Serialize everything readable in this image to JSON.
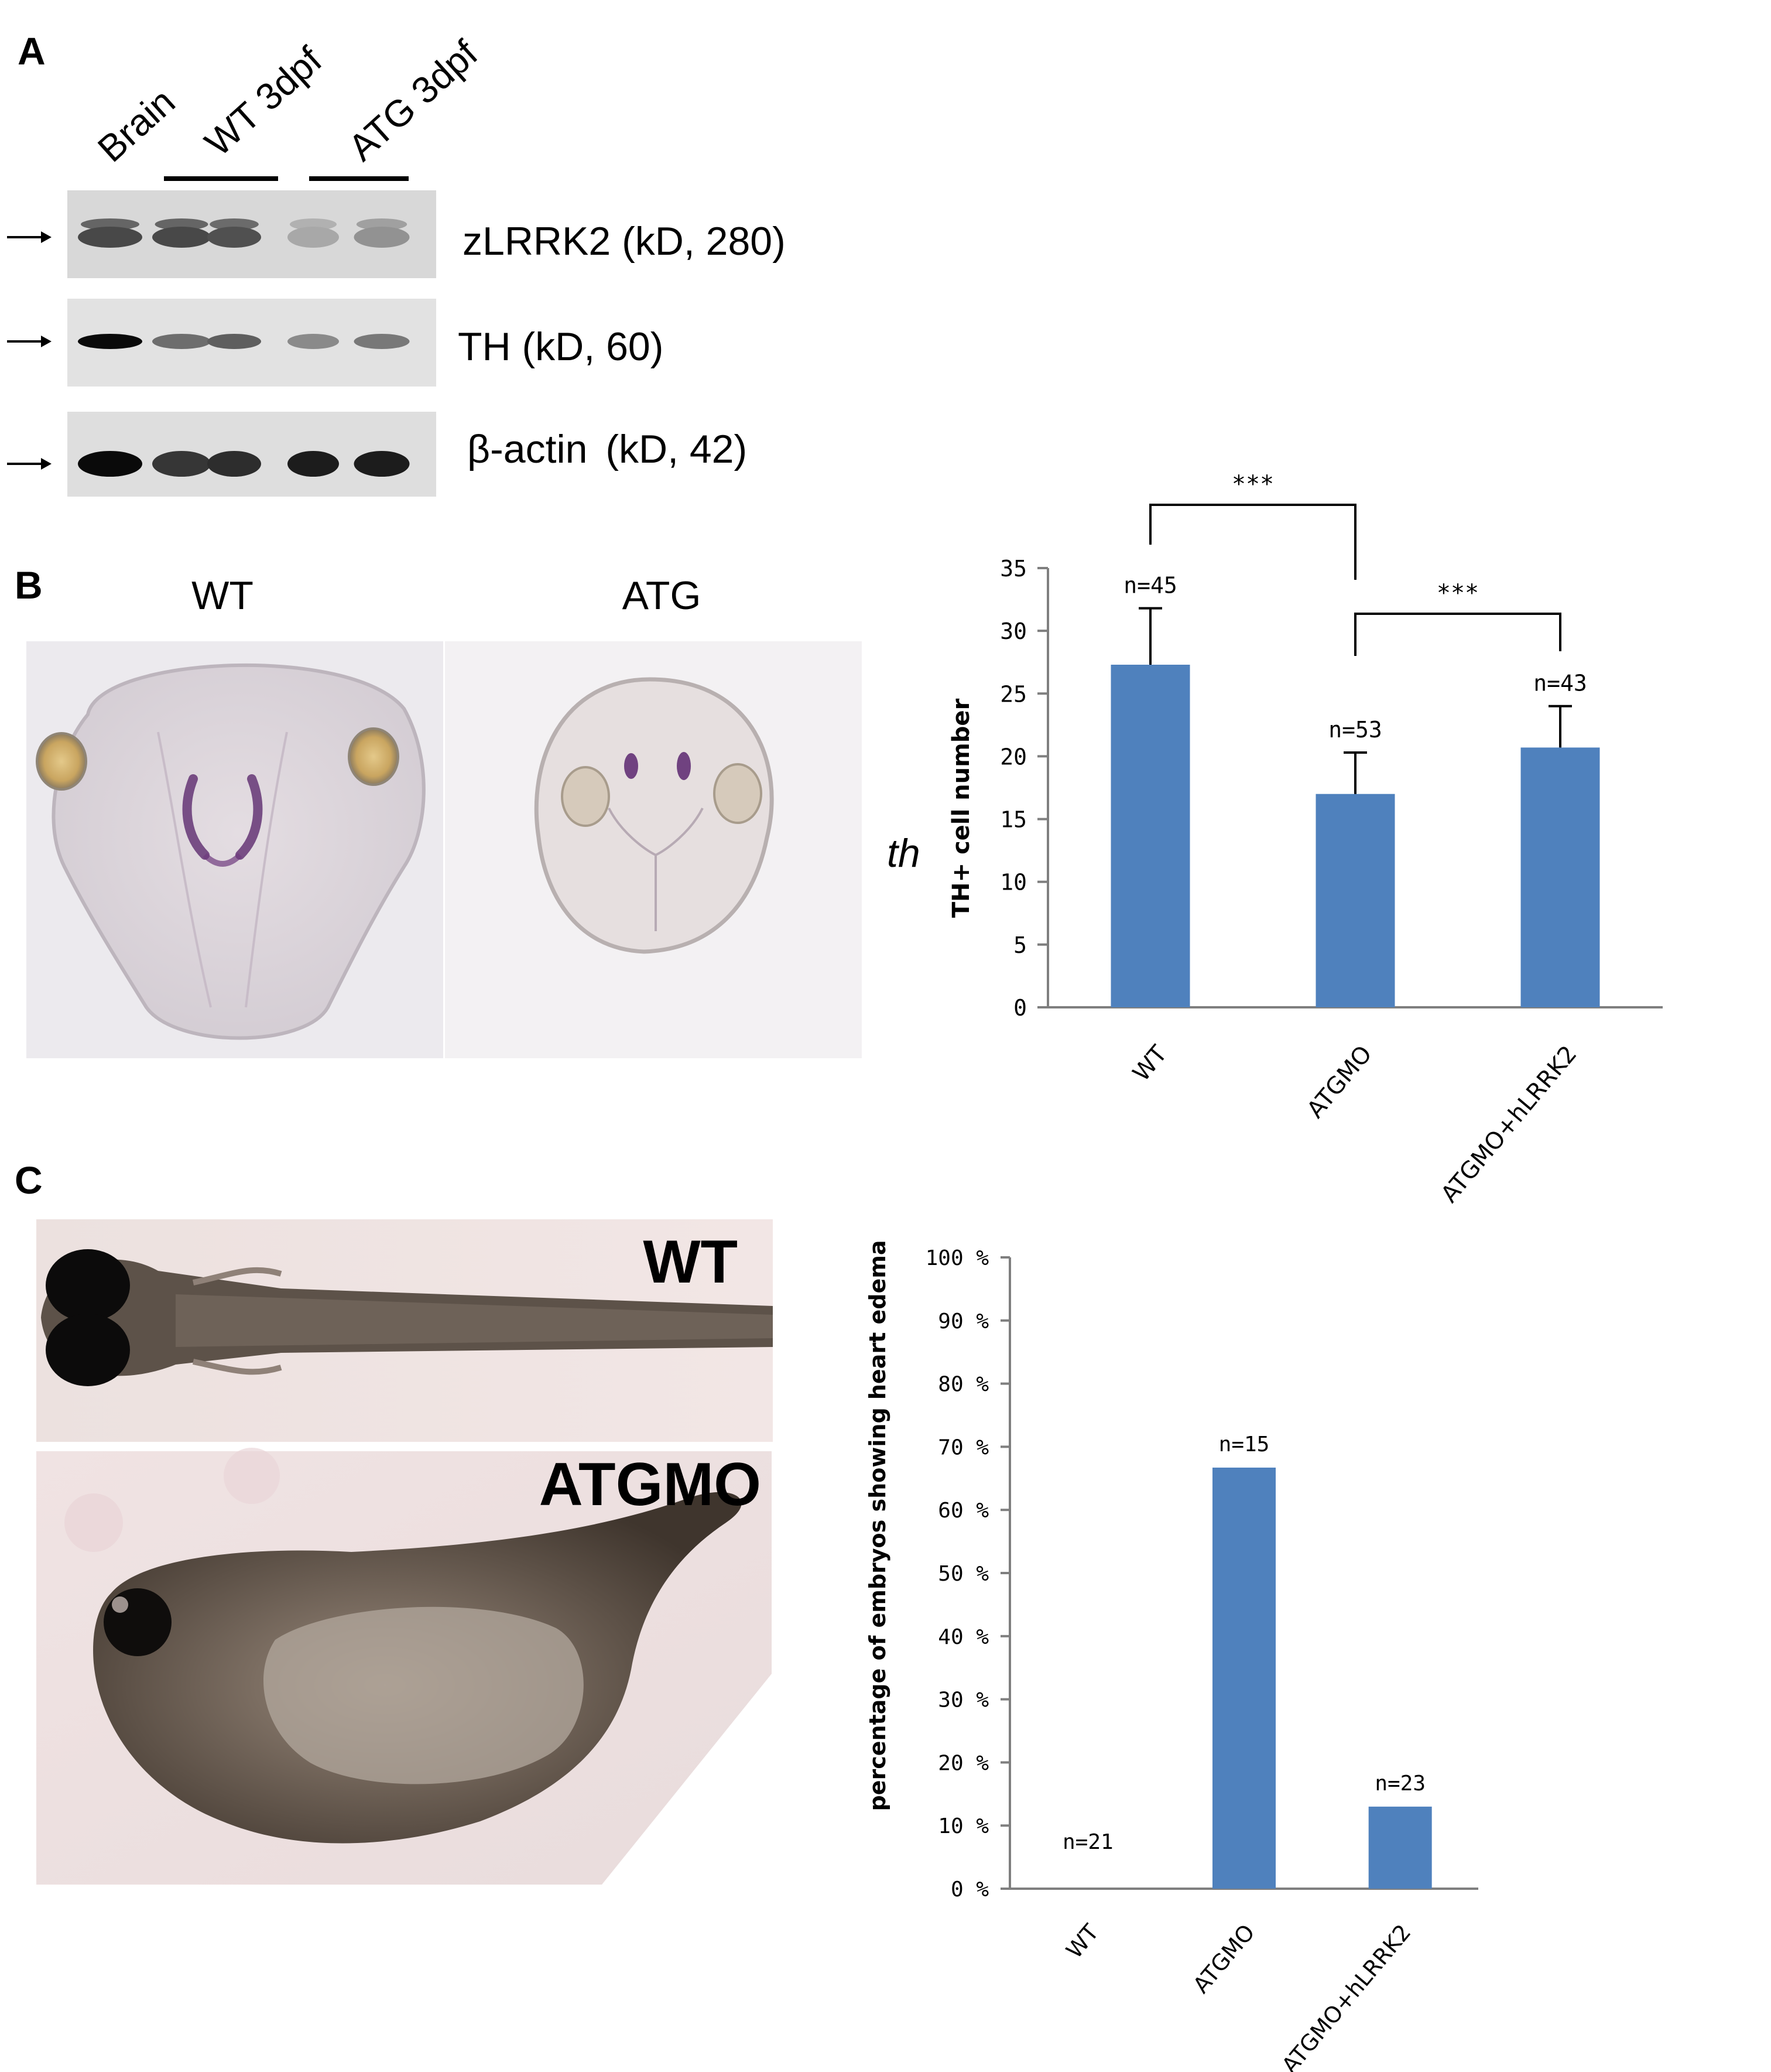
{
  "panelA": {
    "label": "A",
    "lane_headers": [
      "Brain",
      "WT 3dpf",
      "ATG 3dpf"
    ],
    "blots": [
      {
        "name": "zLRRK2",
        "label": "zLRRK2 (kD, 280)"
      },
      {
        "name": "TH",
        "label": "TH (kD, 60)"
      },
      {
        "name": "actin",
        "label_prefix": "β-actin",
        "label_suffix": "(kD, 42)"
      }
    ],
    "band_intensity": {
      "zLRRK2": [
        0.72,
        0.72,
        0.68,
        0.28,
        0.38
      ],
      "TH": [
        1.0,
        0.55,
        0.62,
        0.42,
        0.5
      ],
      "actin": [
        1.0,
        0.8,
        0.84,
        0.92,
        0.92
      ]
    }
  },
  "panelB": {
    "label": "B",
    "image_titles": [
      "WT",
      "ATG"
    ],
    "side_label": "th"
  },
  "panelC": {
    "label": "C",
    "image_titles": [
      "WT",
      "ATGMO"
    ]
  },
  "chart_data": [
    {
      "type": "bar",
      "categories": [
        "WT",
        "ATGMO",
        "ATGMO+hLRRK2"
      ],
      "values": [
        27.3,
        17.0,
        20.7
      ],
      "errors": [
        4.5,
        3.3,
        3.3
      ],
      "bar_labels": [
        "n=45",
        "n=53",
        "n=43"
      ],
      "ylabel": "TH+ cell number",
      "ylim": [
        0,
        35
      ],
      "yticks": [
        0,
        5,
        10,
        15,
        20,
        25,
        30,
        35
      ],
      "significance": [
        {
          "pair": [
            "WT",
            "ATGMO"
          ],
          "label": "***"
        },
        {
          "pair": [
            "ATGMO",
            "ATGMO+hLRRK2"
          ],
          "label": "***"
        }
      ],
      "color": "#4f81bd",
      "grid": false
    },
    {
      "type": "bar",
      "categories": [
        "WT",
        "ATGMO",
        "ATGMO+hLRRK2"
      ],
      "values": [
        0,
        66.7,
        13.0
      ],
      "bar_labels": [
        "n=21",
        "n=15",
        "n=23"
      ],
      "ylabel": "percentage of embryos showing heart edema",
      "ylim": [
        0,
        100
      ],
      "yticks": [
        "0 %",
        "10 %",
        "20 %",
        "30 %",
        "40 %",
        "50 %",
        "60 %",
        "70 %",
        "80 %",
        "90 %",
        "100 %"
      ],
      "color": "#4f81bd",
      "grid": false
    }
  ]
}
